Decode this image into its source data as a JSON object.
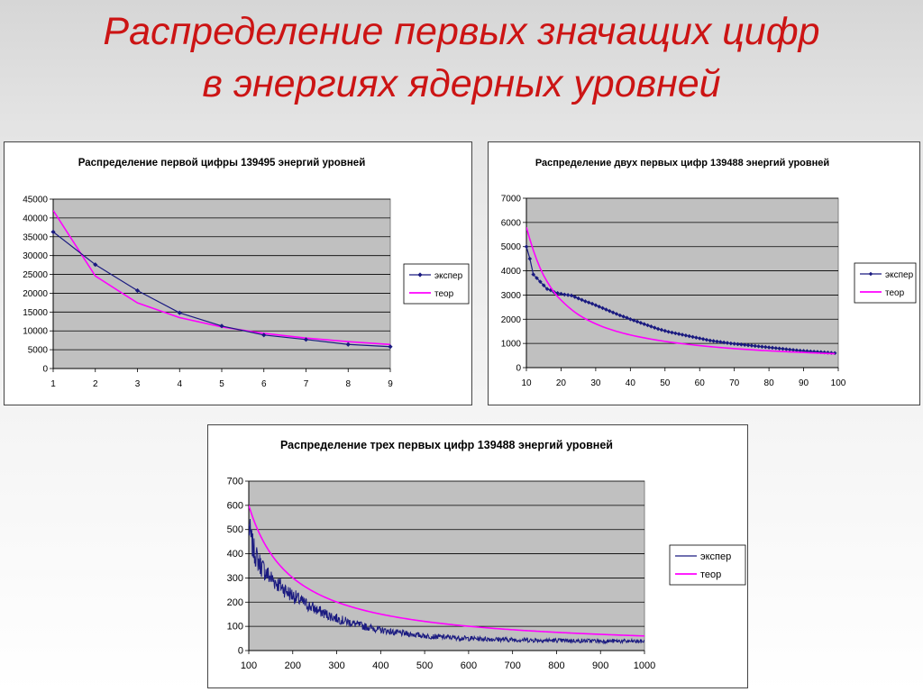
{
  "slide": {
    "title_line1": "Распределение первых значащих цифр",
    "title_line2": "в энергиях ядерных уровней"
  },
  "colors": {
    "exp": "#1a1a80",
    "theo": "#ff00ff",
    "plot_bg": "#c0c0c0",
    "title": "#cc1414"
  },
  "chart_data": [
    {
      "type": "line",
      "title": "Распределение первой цифры 139495 энергий уровней",
      "xlabel": "",
      "ylabel": "",
      "xlim": [
        1,
        9
      ],
      "ylim": [
        0,
        45000
      ],
      "x_ticks": [
        1,
        2,
        3,
        4,
        5,
        6,
        7,
        8,
        9
      ],
      "y_ticks": [
        0,
        5000,
        10000,
        15000,
        20000,
        25000,
        30000,
        35000,
        40000,
        45000
      ],
      "grid": true,
      "legend": "right",
      "x": [
        1,
        2,
        3,
        4,
        5,
        6,
        7,
        8,
        9
      ],
      "series": [
        {
          "name": "экспер",
          "markers": true,
          "values": [
            36300,
            27600,
            20700,
            14800,
            11300,
            8900,
            7700,
            6400,
            5800
          ]
        },
        {
          "name": "теор",
          "markers": false,
          "values": [
            42000,
            24570,
            17430,
            13520,
            11050,
            9340,
            8090,
            7140,
            6390
          ]
        }
      ]
    },
    {
      "type": "line",
      "title": "Распределение двух первых цифр 139488 энергий уровней",
      "xlabel": "",
      "ylabel": "",
      "xlim": [
        10,
        100
      ],
      "ylim": [
        0,
        7000
      ],
      "x_ticks": [
        10,
        20,
        30,
        40,
        50,
        60,
        70,
        80,
        90,
        100
      ],
      "y_ticks": [
        0,
        1000,
        2000,
        3000,
        4000,
        5000,
        6000,
        7000
      ],
      "grid": true,
      "legend": "right",
      "x_range": [
        10,
        99
      ],
      "series": [
        {
          "name": "экспер",
          "markers": true,
          "x_range": [
            10,
            99
          ],
          "values": [
            5000,
            4500,
            3850,
            3700,
            3550,
            3400,
            3250,
            3200,
            3120,
            3080,
            3050,
            3020,
            3000,
            2980,
            2920,
            2860,
            2800,
            2740,
            2690,
            2640,
            2580,
            2520,
            2460,
            2400,
            2340,
            2280,
            2220,
            2160,
            2110,
            2060,
            2000,
            1950,
            1900,
            1850,
            1800,
            1750,
            1700,
            1650,
            1600,
            1560,
            1520,
            1480,
            1450,
            1420,
            1390,
            1360,
            1330,
            1300,
            1270,
            1240,
            1210,
            1180,
            1150,
            1120,
            1100,
            1080,
            1060,
            1040,
            1020,
            1000,
            985,
            970,
            955,
            940,
            925,
            910,
            895,
            880,
            865,
            850,
            835,
            820,
            805,
            790,
            775,
            760,
            745,
            730,
            715,
            700,
            690,
            680,
            670,
            660,
            650,
            640,
            630,
            620,
            610,
            600
          ]
        },
        {
          "name": "теор",
          "markers": false,
          "x_range": [
            10,
            99
          ],
          "values": [
            5800,
            5300,
            4850,
            4450,
            4100,
            3800,
            3550,
            3320,
            3120,
            2940,
            2790,
            2650,
            2520,
            2400,
            2290,
            2190,
            2100,
            2020,
            1945,
            1875,
            1810,
            1750,
            1690,
            1640,
            1590,
            1545,
            1500,
            1460,
            1420,
            1385,
            1350,
            1318,
            1287,
            1258,
            1230,
            1203,
            1177,
            1153,
            1130,
            1107,
            1085,
            1064,
            1044,
            1025,
            1007,
            989,
            972,
            956,
            940,
            925,
            910,
            896,
            882,
            869,
            856,
            843,
            831,
            819,
            808,
            797,
            786,
            776,
            766,
            756,
            746,
            737,
            728,
            719,
            711,
            703,
            695,
            687,
            679,
            672,
            665,
            658,
            651,
            644,
            638,
            631,
            625,
            619,
            613,
            607,
            601,
            596,
            590,
            585,
            580,
            575
          ]
        }
      ]
    },
    {
      "type": "line",
      "title": "Распределение трех первых цифр 139488 энергий уровней",
      "xlabel": "",
      "ylabel": "",
      "xlim": [
        100,
        1000
      ],
      "ylim": [
        0,
        700
      ],
      "x_ticks": [
        100,
        200,
        300,
        400,
        500,
        600,
        700,
        800,
        900,
        1000
      ],
      "y_ticks": [
        0,
        100,
        200,
        300,
        400,
        500,
        600,
        700
      ],
      "grid": true,
      "legend": "right",
      "series": [
        {
          "name": "экспер",
          "markers": false,
          "x_range": [
            100,
            999
          ],
          "step": 10,
          "noisy": true,
          "values": [
            510,
            420,
            375,
            345,
            320,
            300,
            285,
            270,
            255,
            240,
            228,
            215,
            203,
            192,
            182,
            172,
            163,
            155,
            147,
            140,
            133,
            127,
            121,
            116,
            111,
            106,
            101,
            97,
            93,
            89,
            85,
            82,
            79,
            76,
            73,
            71,
            69,
            67,
            65,
            63,
            61,
            59,
            58,
            57,
            56,
            55,
            54,
            53,
            52,
            51,
            50,
            50,
            49,
            48,
            48,
            47,
            47,
            46,
            46,
            45,
            45,
            44,
            44,
            44,
            43,
            43,
            43,
            42,
            42,
            42,
            42,
            41,
            41,
            41,
            41,
            40,
            40,
            40,
            40,
            40,
            39,
            39,
            39,
            39,
            39,
            39,
            38,
            38,
            38,
            38
          ]
        },
        {
          "name": "теор",
          "markers": false,
          "x_range": [
            100,
            1000
          ],
          "formula": "benford-3digit",
          "values": [
            600,
            310,
            205,
            155,
            124,
            103,
            88,
            77,
            68,
            61,
            60
          ]
        }
      ]
    }
  ]
}
